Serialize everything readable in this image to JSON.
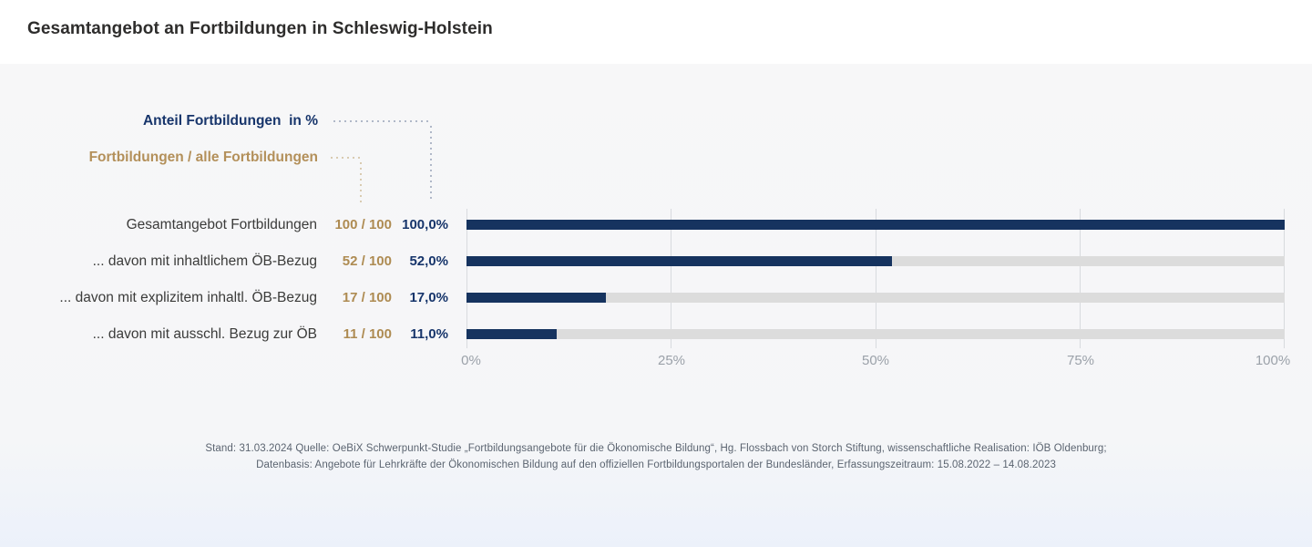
{
  "header": {
    "title": "Gesamtangebot an Fortbildungen in Schleswig-Holstein"
  },
  "legend": {
    "percent_label": "Anteil Fortbildungen  in %",
    "ratio_label": "Fortbildungen / alle Fortbildungen"
  },
  "chart_data": {
    "type": "bar",
    "orientation": "horizontal",
    "title": "Gesamtangebot an Fortbildungen in Schleswig-Holstein",
    "categories": [
      "Gesamtangebot Fortbildungen",
      "... davon mit inhaltlichem ÖB-Bezug",
      "... davon mit explizitem inhaltl. ÖB-Bezug",
      "... davon mit ausschl. Bezug zur ÖB"
    ],
    "values": [
      100,
      52,
      17,
      11
    ],
    "ratio_labels": [
      "100 / 100",
      "52 / 100",
      "17 / 100",
      "11 / 100"
    ],
    "value_labels": [
      "100,0%",
      "52,0%",
      "17,0%",
      "11,0%"
    ],
    "xlim": [
      0,
      100
    ],
    "xticks": [
      0,
      25,
      50,
      75,
      100
    ],
    "xtick_labels": [
      "0%",
      "25%",
      "50%",
      "75%",
      "100%"
    ],
    "grid": "vertical-gridlines-at-ticks",
    "legend_position": "top-left",
    "colors": {
      "bar_fill": "#16335f",
      "bar_track": "#dcdcdc",
      "accent_gold": "#ae8b52",
      "accent_navy": "#17356b",
      "axis_label": "#9ba1a9"
    }
  },
  "rows": [
    {
      "label": "Gesamtangebot Fortbildungen",
      "ratio": "100 / 100",
      "pct": "100,0%"
    },
    {
      "label": "... davon mit inhaltlichem ÖB-Bezug",
      "ratio": "52 / 100",
      "pct": "52,0%"
    },
    {
      "label": "... davon mit explizitem inhaltl. ÖB-Bezug",
      "ratio": "17 / 100",
      "pct": "17,0%"
    },
    {
      "label": "... davon mit ausschl. Bezug zur ÖB",
      "ratio": "11 / 100",
      "pct": "11,0%"
    }
  ],
  "footer": {
    "line1": "Stand: 31.03.2024 Quelle: OeBiX Schwerpunkt-Studie „Fortbildungsangebote für die Ökonomische Bildung“, Hg. Flossbach von Storch Stiftung, wissenschaftliche Realisation: IÖB Oldenburg;",
    "line2": "Datenbasis: Angebote für Lehrkräfte der Ökonomischen Bildung auf den offiziellen Fortbildungsportalen der Bundesländer, Erfassungszeitraum: 15.08.2022 – 14.08.2023"
  }
}
